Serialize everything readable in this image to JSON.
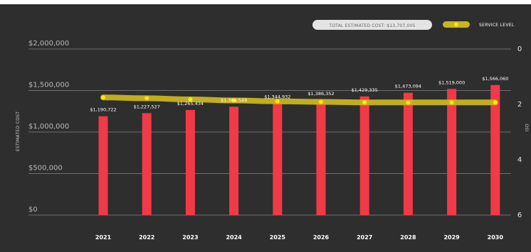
{
  "chart_data": {
    "type": "bar",
    "categories": [
      "2021",
      "2022",
      "2023",
      "2024",
      "2025",
      "2026",
      "2027",
      "2028",
      "2029",
      "2030"
    ],
    "series": [
      {
        "values": [
          1190722,
          1227527,
          1265434,
          1304549,
          1344932,
          1386352,
          1429335,
          1473094,
          1519000,
          1566060
        ],
        "labels": [
          "$1,190,722",
          "$1,227,527",
          "$1,265,434",
          "$1,304,549",
          "$1,344,932",
          "$1,386,352",
          "$1,429,335",
          "$1,473,094",
          "$1,519,000",
          "$1,566,060"
        ],
        "color": "#f03a47"
      },
      {
        "name": "SERVICE LEVEL",
        "type": "line",
        "axis": "right",
        "values": [
          1.75,
          1.78,
          1.82,
          1.86,
          1.89,
          1.91,
          1.93,
          1.93,
          1.93,
          1.93
        ],
        "color": "#c9b51f",
        "marker_color": "#ffe600"
      }
    ],
    "ylabel": "ESTIMATED COST",
    "ylim": [
      0,
      2000000
    ],
    "yticks": [
      "$0",
      "$500,000",
      "$1,000,000",
      "$1,500,000",
      "$2,000,000"
    ],
    "y2label": "OSI",
    "y2lim": [
      0,
      6
    ],
    "y2_inverted": true,
    "y2ticks": [
      "0",
      "2",
      "4",
      "6"
    ],
    "total_label": "TOTAL ESTIMATED COST: $13,707,005",
    "legend_position": "top-right",
    "grid": true
  },
  "colors": {
    "background": "#2e2e2e",
    "grid": "#6e6e6e"
  }
}
